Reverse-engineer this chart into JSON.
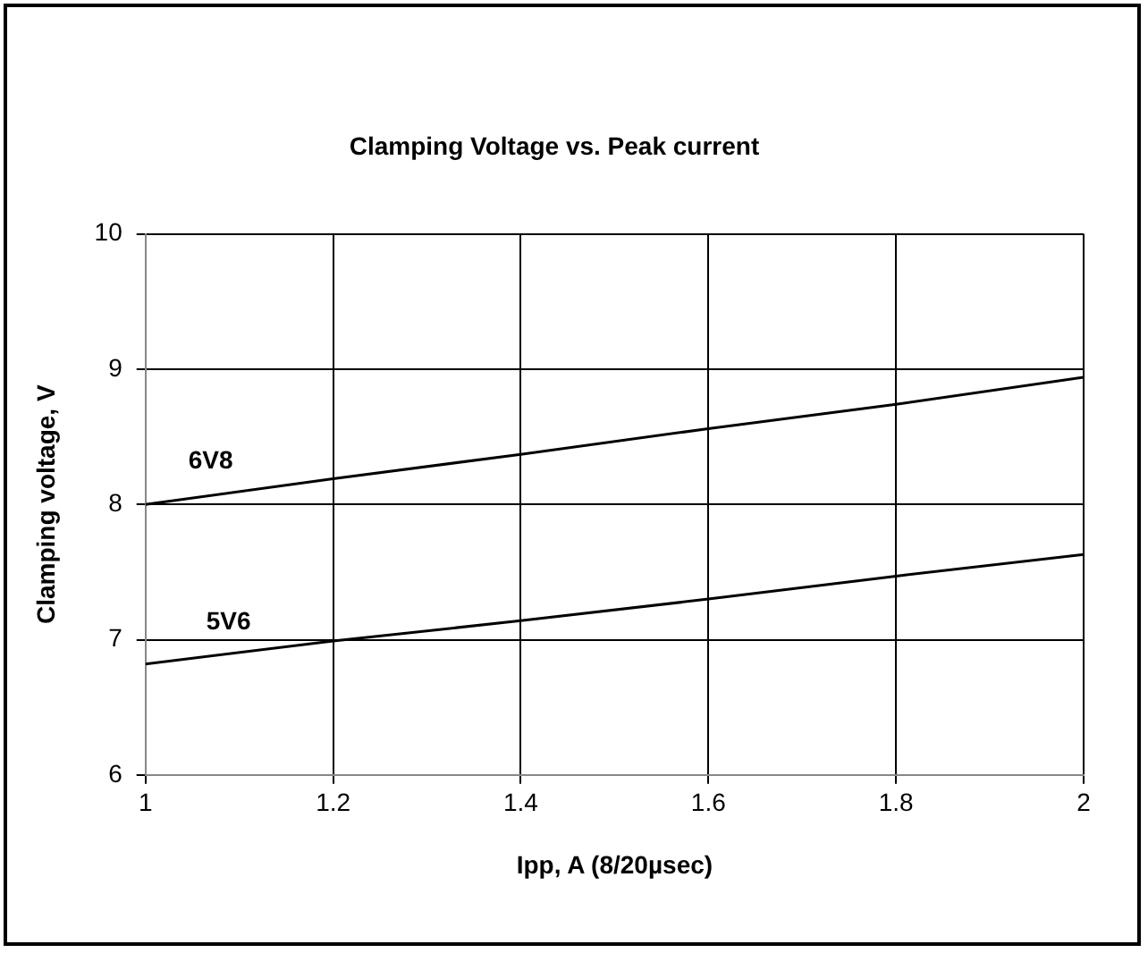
{
  "chart_data": {
    "type": "line",
    "title": "Clamping Voltage vs. Peak current",
    "xlabel": "Ipp, A (8/20µsec)",
    "ylabel": "Clamping voltage, V",
    "x": [
      1,
      1.2,
      1.4,
      1.6,
      1.8,
      2
    ],
    "series": [
      {
        "name": "6V8",
        "color": "#000000",
        "values": [
          8.0,
          8.19,
          8.37,
          8.56,
          8.74,
          8.94
        ]
      },
      {
        "name": "5V6",
        "color": "#000000",
        "values": [
          6.82,
          6.99,
          7.14,
          7.3,
          7.47,
          7.63
        ]
      }
    ],
    "xlim": [
      1,
      2
    ],
    "xticks": [
      1,
      1.2,
      1.4,
      1.6,
      1.8,
      2
    ],
    "ylim": [
      6,
      10
    ],
    "yticks": [
      6,
      7,
      8,
      9,
      10
    ],
    "grid": true,
    "legend": false,
    "marker": "none",
    "line_style": "solid"
  }
}
